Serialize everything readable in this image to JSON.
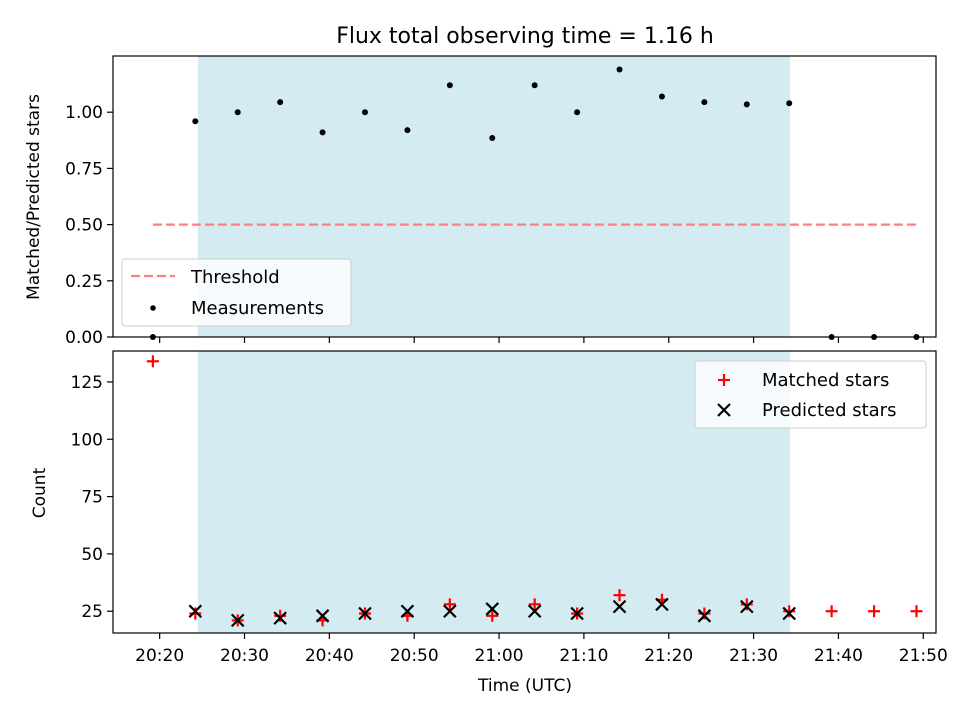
{
  "chart_data": {
    "type": "scatter",
    "title": "Flux total observing time = 1.16 h",
    "xlabel": "Time (UTC)",
    "x_tick_labels": [
      "20:20",
      "20:30",
      "20:40",
      "20:50",
      "21:00",
      "21:10",
      "21:20",
      "21:30",
      "21:40",
      "21:50"
    ],
    "x_tick_minutes": [
      1220,
      1230,
      1240,
      1250,
      1260,
      1270,
      1280,
      1290,
      1300,
      1310
    ],
    "x_range_minutes": [
      1214.5,
      1311.5
    ],
    "observing_window_minutes": [
      1224.5,
      1294.3
    ],
    "window_color": "#add8e6",
    "x_times": [
      "20:19",
      "20:24",
      "20:29",
      "20:34",
      "20:39",
      "20:44",
      "20:49",
      "20:54",
      "20:59",
      "21:04",
      "21:09",
      "21:14",
      "21:19",
      "21:24",
      "21:29",
      "21:34",
      "21:39",
      "21:44",
      "21:49"
    ],
    "x_minutes": [
      1219.2,
      1224.2,
      1229.2,
      1234.2,
      1239.2,
      1244.2,
      1249.2,
      1254.2,
      1259.2,
      1264.2,
      1269.2,
      1274.2,
      1279.2,
      1284.2,
      1289.2,
      1294.2,
      1299.2,
      1304.2,
      1309.2
    ],
    "panels": [
      {
        "ylabel": "Matched/Predicted stars",
        "ylim": [
          0,
          1.25
        ],
        "y_ticks": [
          0.0,
          0.25,
          0.5,
          0.75,
          1.0
        ],
        "y_tick_labels": [
          "0.00",
          "0.25",
          "0.50",
          "0.75",
          "1.00"
        ],
        "legend_position": "lower-left",
        "series": [
          {
            "name": "Threshold",
            "kind": "dashed-line",
            "color": "#ff7f7f",
            "x_minutes": [
              1219.2,
              1309.2
            ],
            "values": [
              0.5,
              0.5
            ]
          },
          {
            "name": "Measurements",
            "kind": "dot",
            "color": "#000000",
            "values": [
              0.0,
              0.96,
              1.0,
              1.045,
              0.91,
              1.0,
              0.92,
              1.12,
              0.885,
              1.12,
              1.0,
              1.19,
              1.07,
              1.045,
              1.035,
              1.04,
              0.0,
              0.0,
              0.0
            ]
          }
        ]
      },
      {
        "ylabel": "Count",
        "ylim": [
          15.5,
          138.5
        ],
        "y_ticks": [
          25,
          50,
          75,
          100,
          125
        ],
        "y_tick_labels": [
          "25",
          "50",
          "75",
          "100",
          "125"
        ],
        "legend_position": "upper-right",
        "series": [
          {
            "name": "Matched stars",
            "kind": "plus",
            "color": "#ff0000",
            "values": [
              134,
              24,
              21,
              23,
              21,
              24,
              23,
              28,
              23,
              28,
              24,
              32,
              30,
              24,
              28,
              25,
              25,
              25,
              25
            ]
          },
          {
            "name": "Predicted stars",
            "kind": "x",
            "color": "#000000",
            "values": [
              null,
              25,
              21,
              22,
              23,
              24,
              25,
              25,
              26,
              25,
              24,
              27,
              28,
              23,
              27,
              24,
              null,
              null,
              null
            ]
          }
        ]
      }
    ]
  }
}
